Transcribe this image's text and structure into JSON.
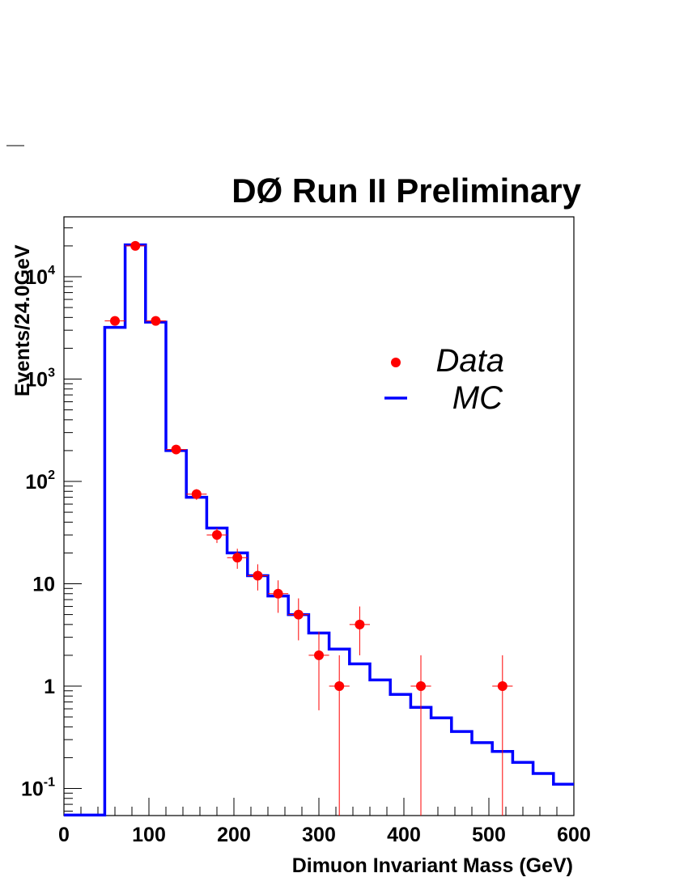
{
  "chart_data": {
    "type": "line",
    "title": "DØ Run II Preliminary",
    "xlabel": "Dimuon Invariant Mass (GeV)",
    "ylabel": "Events/24.0GeV",
    "xlim": [
      0,
      600
    ],
    "ylim": [
      0.055,
      40000
    ],
    "yscale": "log",
    "grid": false,
    "legend_position": "upper-right",
    "x_ticks": [
      {
        "value": 0,
        "label": "0"
      },
      {
        "value": 100,
        "label": "100"
      },
      {
        "value": 200,
        "label": "200"
      },
      {
        "value": 300,
        "label": "300"
      },
      {
        "value": 400,
        "label": "400"
      },
      {
        "value": 500,
        "label": "500"
      },
      {
        "value": 600,
        "label": "600"
      }
    ],
    "y_ticks": [
      {
        "value": 0.1,
        "base": "10",
        "exp": "-1"
      },
      {
        "value": 1,
        "base": "1",
        "exp": ""
      },
      {
        "value": 10,
        "base": "10",
        "exp": ""
      },
      {
        "value": 100,
        "base": "10",
        "exp": "2"
      },
      {
        "value": 1000,
        "base": "10",
        "exp": "3"
      },
      {
        "value": 10000,
        "base": "10",
        "exp": "4"
      }
    ],
    "series": [
      {
        "name": "MC",
        "kind": "step",
        "color": "#0000ff",
        "bin_edges": [
          0,
          48,
          72,
          96,
          120,
          144,
          168,
          192,
          216,
          240,
          264,
          288,
          312,
          336,
          360,
          384,
          408,
          432,
          456,
          480,
          504,
          528,
          552,
          576,
          600
        ],
        "values": [
          0.055,
          3200,
          20500,
          3600,
          200,
          70,
          35,
          20,
          12,
          7.6,
          5,
          3.3,
          2.3,
          1.65,
          1.15,
          0.83,
          0.62,
          0.49,
          0.36,
          0.28,
          0.23,
          0.18,
          0.14,
          0.11
        ]
      },
      {
        "name": "Data",
        "kind": "points",
        "color": "#ff0000",
        "x_err": 12,
        "points": [
          {
            "x": 60,
            "y": 3700,
            "lo": 3640,
            "hi": 3760
          },
          {
            "x": 84,
            "y": 20000,
            "lo": 19860,
            "hi": 20140
          },
          {
            "x": 108,
            "y": 3700,
            "lo": 3640,
            "hi": 3760
          },
          {
            "x": 132,
            "y": 205,
            "lo": 191,
            "hi": 219
          },
          {
            "x": 156,
            "y": 75,
            "lo": 66,
            "hi": 84
          },
          {
            "x": 180,
            "y": 30,
            "lo": 25,
            "hi": 35
          },
          {
            "x": 204,
            "y": 18,
            "lo": 14,
            "hi": 22
          },
          {
            "x": 228,
            "y": 12,
            "lo": 8.6,
            "hi": 15.5
          },
          {
            "x": 252,
            "y": 8,
            "lo": 5.2,
            "hi": 10.8
          },
          {
            "x": 276,
            "y": 5,
            "lo": 2.8,
            "hi": 7.2
          },
          {
            "x": 300,
            "y": 2,
            "lo": 0.58,
            "hi": 3.4
          },
          {
            "x": 324,
            "y": 1,
            "lo": 0.05,
            "hi": 2
          },
          {
            "x": 348,
            "y": 4,
            "lo": 2,
            "hi": 6
          },
          {
            "x": 420,
            "y": 1,
            "lo": 0.05,
            "hi": 2
          },
          {
            "x": 516,
            "y": 1,
            "lo": 0.05,
            "hi": 2
          }
        ]
      }
    ],
    "legend": [
      {
        "label": "Data",
        "marker": "dot"
      },
      {
        "label": "MC",
        "marker": "line"
      }
    ]
  }
}
